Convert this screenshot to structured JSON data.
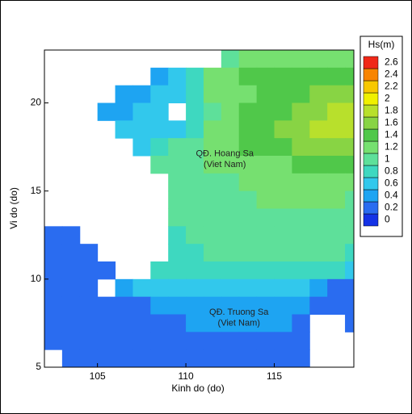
{
  "chart_data": {
    "type": "heatmap",
    "xlabel": "Kinh do (do)",
    "ylabel": "Vi do (do)",
    "xlim": [
      102,
      119.5
    ],
    "ylim": [
      5,
      23
    ],
    "xticks": [
      105,
      110,
      115
    ],
    "yticks": [
      5,
      10,
      15,
      20
    ],
    "x": [
      102,
      103,
      104,
      105,
      106,
      107,
      108,
      109,
      110,
      111,
      112,
      113,
      114,
      115,
      116,
      117,
      118,
      119
    ],
    "y": [
      22,
      21,
      20,
      19,
      18,
      17,
      16,
      15,
      14,
      13,
      12,
      11,
      10,
      9,
      8,
      7,
      6,
      5
    ],
    "values": [
      [
        null,
        null,
        null,
        null,
        null,
        null,
        null,
        null,
        null,
        null,
        1.0,
        1.2,
        1.2,
        1.2,
        1.2,
        1.3,
        1.3,
        1.3
      ],
      [
        null,
        null,
        null,
        null,
        null,
        null,
        0.5,
        0.6,
        0.9,
        1.2,
        1.3,
        1.4,
        1.4,
        1.4,
        1.5,
        1.5,
        1.5,
        1.5
      ],
      [
        null,
        null,
        null,
        null,
        0.5,
        0.5,
        0.6,
        0.6,
        0.8,
        1.2,
        1.3,
        1.3,
        1.4,
        1.4,
        1.5,
        1.6,
        1.6,
        1.6
      ],
      [
        null,
        null,
        null,
        0.5,
        0.5,
        0.6,
        0.6,
        null,
        0.8,
        1.1,
        1.3,
        1.4,
        1.5,
        1.5,
        1.6,
        1.7,
        1.8,
        1.8
      ],
      [
        null,
        null,
        null,
        null,
        0.6,
        0.6,
        0.7,
        0.7,
        0.9,
        1.2,
        1.3,
        1.4,
        1.5,
        1.6,
        1.7,
        1.8,
        1.9,
        1.8
      ],
      [
        null,
        null,
        null,
        null,
        null,
        0.7,
        0.9,
        1.0,
        1.1,
        1.2,
        1.3,
        1.4,
        1.4,
        1.5,
        1.6,
        1.7,
        1.7,
        1.6
      ],
      [
        null,
        null,
        null,
        null,
        null,
        null,
        1.0,
        1.1,
        1.1,
        1.2,
        1.2,
        1.2,
        1.3,
        1.3,
        1.4,
        1.4,
        1.4,
        1.4
      ],
      [
        null,
        null,
        null,
        null,
        null,
        null,
        null,
        1.0,
        1.1,
        1.1,
        1.1,
        1.2,
        1.2,
        1.2,
        1.3,
        1.3,
        1.3,
        1.2
      ],
      [
        null,
        null,
        null,
        null,
        null,
        null,
        null,
        1.0,
        1.1,
        1.1,
        1.1,
        1.1,
        1.2,
        1.2,
        1.2,
        1.2,
        1.2,
        1.1
      ],
      [
        null,
        null,
        null,
        null,
        null,
        null,
        null,
        1.0,
        1.0,
        1.0,
        1.0,
        1.1,
        1.1,
        1.1,
        1.1,
        1.1,
        1.0,
        1.0
      ],
      [
        0.2,
        0.2,
        null,
        null,
        null,
        null,
        null,
        0.9,
        1.0,
        1.0,
        1.0,
        1.0,
        1.0,
        1.0,
        1.0,
        1.0,
        1.0,
        1.0
      ],
      [
        0.2,
        0.2,
        0.2,
        null,
        null,
        null,
        null,
        0.9,
        0.9,
        1.0,
        1.0,
        1.0,
        1.0,
        1.0,
        1.0,
        1.0,
        1.0,
        0.9
      ],
      [
        0.2,
        0.2,
        0.2,
        0.2,
        null,
        null,
        0.8,
        0.9,
        0.9,
        0.9,
        0.9,
        0.9,
        0.9,
        0.9,
        0.9,
        0.9,
        0.8,
        0.7
      ],
      [
        0.2,
        0.2,
        0.2,
        null,
        0.5,
        0.6,
        0.7,
        0.7,
        0.7,
        0.7,
        0.7,
        0.7,
        0.7,
        0.7,
        0.6,
        0.5,
        0.3,
        0.3
      ],
      [
        0.2,
        0.2,
        0.2,
        0.2,
        0.3,
        0.3,
        0.4,
        0.4,
        0.4,
        0.5,
        0.5,
        0.5,
        0.5,
        0.5,
        0.4,
        0.3,
        0.2,
        0.2
      ],
      [
        0.2,
        0.2,
        0.2,
        0.2,
        0.2,
        0.2,
        0.3,
        0.3,
        0.4,
        0.4,
        0.4,
        0.4,
        0.4,
        0.4,
        0.3,
        null,
        null,
        0.2
      ],
      [
        0.2,
        0.2,
        0.2,
        0.2,
        0.2,
        0.2,
        0.3,
        0.3,
        0.3,
        0.3,
        0.3,
        0.3,
        0.3,
        0.3,
        0.3,
        null,
        null,
        null
      ],
      [
        null,
        0.2,
        0.2,
        0.2,
        0.2,
        0.2,
        0.3,
        0.3,
        0.3,
        0.3,
        0.3,
        0.3,
        0.3,
        0.3,
        0.2,
        null,
        null,
        null
      ]
    ],
    "colorbar": {
      "title": "Hs(m)",
      "ticks": [
        0,
        0.2,
        0.4,
        0.6,
        0.8,
        1,
        1.2,
        1.4,
        1.6,
        1.8,
        2,
        2.2,
        2.4,
        2.6
      ],
      "colors": [
        "#1432e6",
        "#2a6cf0",
        "#1ea4f2",
        "#32c8ec",
        "#3ed8c0",
        "#5ee09a",
        "#76e070",
        "#50c84a",
        "#88d444",
        "#b8e02c",
        "#f0f000",
        "#f8c800",
        "#f88400",
        "#f02818"
      ]
    },
    "annotations": [
      "QĐ. Hoang Sa",
      "(Viet Nam)",
      "QĐ. Truong Sa",
      "(Viet Nam)"
    ]
  }
}
